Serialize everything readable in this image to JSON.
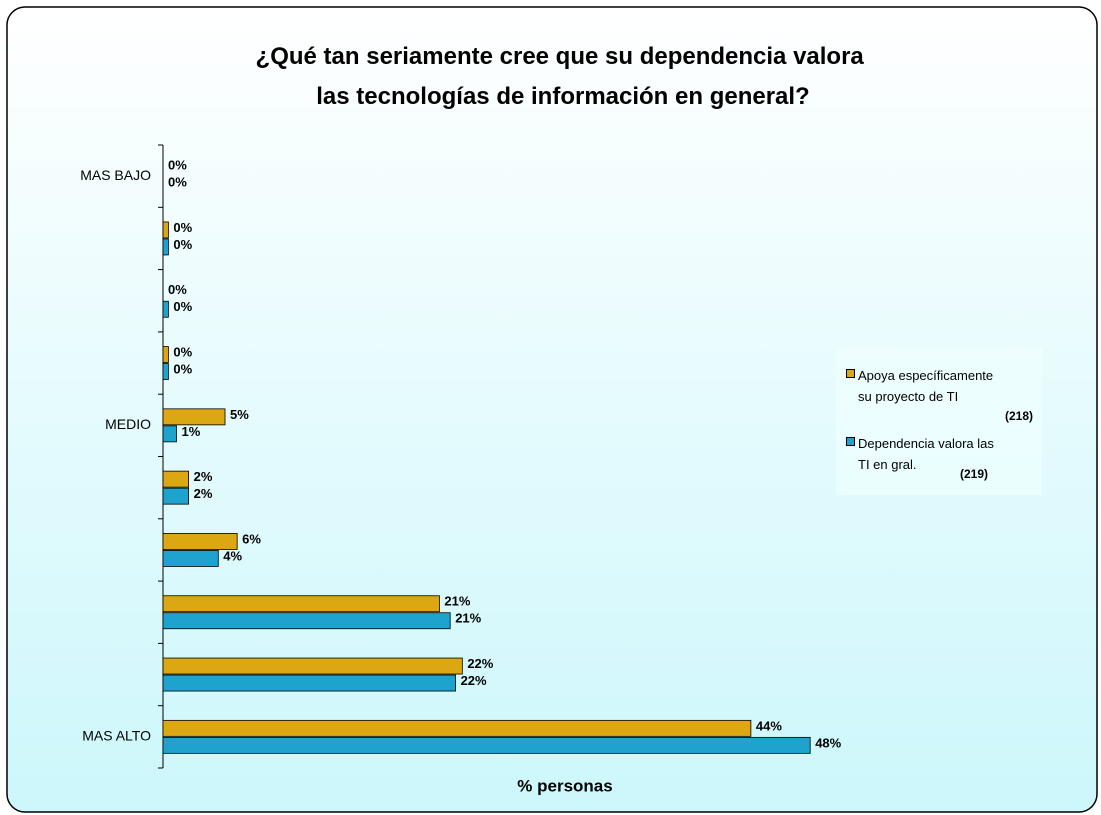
{
  "chart_data": {
    "type": "hbar",
    "title": "¿Qué tan seriamente cree que su dependencia valora las tecnologías de información en general?",
    "x_label": "% personas",
    "categories": [
      "MAS BAJO",
      null,
      null,
      null,
      "MEDIO",
      null,
      null,
      null,
      null,
      "MAS ALTO"
    ],
    "series": [
      {
        "name": "Apoya específicamente su proyecto de TI",
        "count": "(218)",
        "color": "#dba712",
        "values": [
          0,
          0.4,
          0,
          0.4,
          4.6,
          1.9,
          5.5,
          20.5,
          22.2,
          43.6
        ],
        "value_labels": [
          "0%",
          "0%",
          "0%",
          "0%",
          "5%",
          "2%",
          "6%",
          "21%",
          "22%",
          "44%"
        ]
      },
      {
        "name": "Dependencia valora las TI en gral.",
        "count": "(219)",
        "color": "#1ea3cf",
        "values": [
          0,
          0.4,
          0.4,
          0.4,
          1.0,
          1.9,
          4.1,
          21.3,
          21.7,
          48
        ],
        "value_labels": [
          "0%",
          "0%",
          "0%",
          "0%",
          "1%",
          "2%",
          "4%",
          "21%",
          "22%",
          "48%"
        ]
      }
    ],
    "xlim": [
      0,
      60
    ]
  }
}
